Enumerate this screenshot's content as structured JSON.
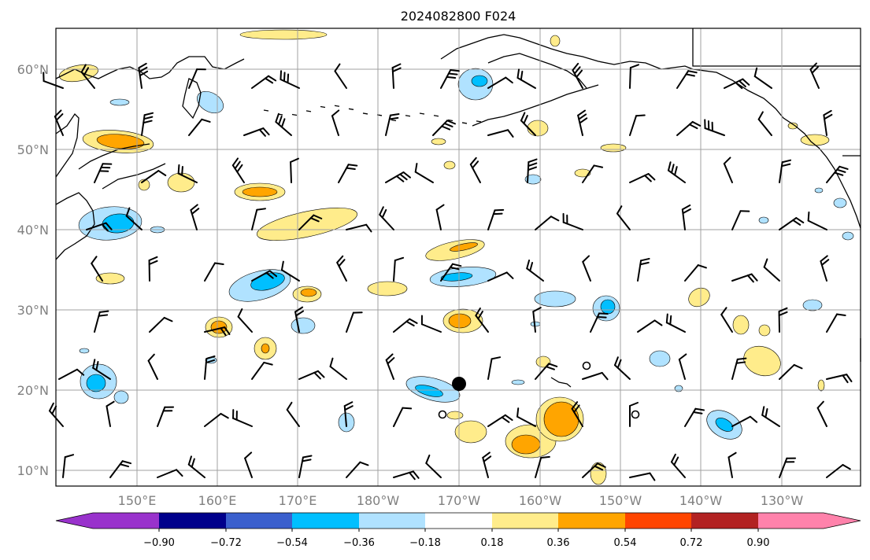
{
  "title": "2024082800 F024",
  "lat_labels": [
    "60°N",
    "50°N",
    "40°N",
    "30°N",
    "20°N",
    "10°N"
  ],
  "lon_labels": [
    "150°E",
    "160°E",
    "170°E",
    "180°W",
    "170°W",
    "160°W",
    "150°W",
    "140°W",
    "130°W"
  ],
  "colorbar": {
    "ticks": [
      "−0.90",
      "−0.72",
      "−0.54",
      "−0.36",
      "−0.18",
      "0.18",
      "0.36",
      "0.54",
      "0.72",
      "0.90"
    ],
    "colors": [
      "#9932cc",
      "#00008b",
      "#3a5fcd",
      "#00bfff",
      "#b0e2ff",
      "#ffffff",
      "#ffec8b",
      "#ffa500",
      "#ff4500",
      "#b22222",
      "#ff82ab"
    ],
    "extend": "both"
  },
  "fill_colors": {
    "light_blue": "#b0e2ff",
    "blue": "#00bfff",
    "light_yellow": "#ffec8b",
    "orange": "#ffa500"
  },
  "marker": {
    "name": "storm-center-dot",
    "color": "#000000"
  }
}
